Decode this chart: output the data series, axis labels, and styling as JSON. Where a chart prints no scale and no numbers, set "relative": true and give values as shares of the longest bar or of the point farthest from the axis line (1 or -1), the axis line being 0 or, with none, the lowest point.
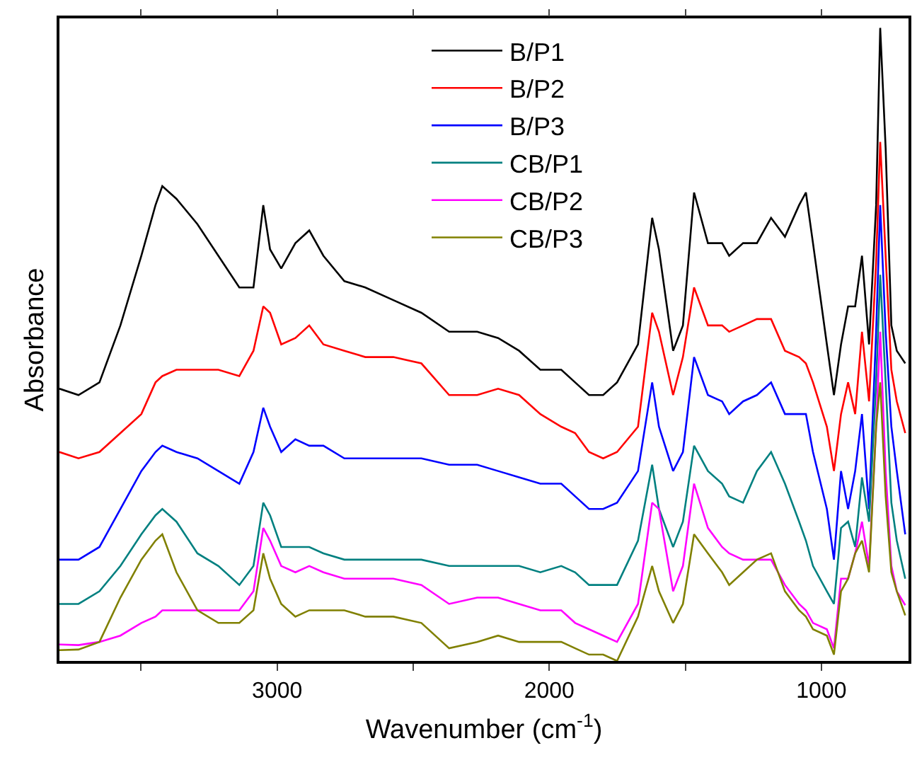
{
  "chart_data": {
    "type": "line",
    "xlabel": "Wavenumber (cm$^{-1}$)",
    "ylabel": "Absorbance",
    "relative": true,
    "legend": "top",
    "tick_labels": "x",
    "xlim": [
      3800,
      680
    ],
    "xticks": [
      {
        "value": 3500,
        "label": null
      },
      3000,
      {
        "value": 2500,
        "label": null
      },
      2000,
      {
        "value": 1500,
        "label": null
      },
      1000
    ],
    "x": [
      3800,
      3730,
      3653,
      3576,
      3499,
      3447,
      3422,
      3370,
      3293,
      3216,
      3139,
      3087,
      3051,
      3026,
      2985,
      2933,
      2882,
      2830,
      2753,
      2676,
      2573,
      2470,
      2368,
      2265,
      2188,
      2111,
      2033,
      1956,
      1905,
      1854,
      1802,
      1751,
      1674,
      1622,
      1597,
      1545,
      1509,
      1468,
      1417,
      1365,
      1339,
      1288,
      1237,
      1185,
      1134,
      1082,
      1057,
      1031,
      980,
      954,
      928,
      902,
      876,
      851,
      825,
      799,
      784,
      764,
      743,
      723,
      692
    ],
    "series": [
      {
        "name": "B/P1",
        "color": "#000000",
        "values": [
          0.43,
          0.42,
          0.44,
          0.53,
          0.64,
          0.72,
          0.75,
          0.73,
          0.69,
          0.64,
          0.59,
          0.59,
          0.72,
          0.65,
          0.62,
          0.66,
          0.68,
          0.64,
          0.6,
          0.59,
          0.57,
          0.55,
          0.52,
          0.52,
          0.51,
          0.49,
          0.46,
          0.46,
          0.44,
          0.42,
          0.42,
          0.44,
          0.5,
          0.7,
          0.65,
          0.49,
          0.53,
          0.74,
          0.66,
          0.66,
          0.64,
          0.66,
          0.66,
          0.7,
          0.67,
          0.72,
          0.74,
          0.66,
          0.5,
          0.42,
          0.5,
          0.56,
          0.56,
          0.64,
          0.5,
          0.72,
          1.0,
          0.81,
          0.53,
          0.49,
          0.47
        ]
      },
      {
        "name": "B/P2",
        "color": "#ff0000",
        "values": [
          0.33,
          0.32,
          0.33,
          0.36,
          0.39,
          0.44,
          0.45,
          0.46,
          0.46,
          0.46,
          0.45,
          0.49,
          0.56,
          0.55,
          0.5,
          0.51,
          0.53,
          0.5,
          0.49,
          0.48,
          0.48,
          0.47,
          0.42,
          0.42,
          0.43,
          0.42,
          0.39,
          0.37,
          0.36,
          0.33,
          0.32,
          0.33,
          0.37,
          0.55,
          0.52,
          0.42,
          0.48,
          0.59,
          0.53,
          0.53,
          0.52,
          0.53,
          0.54,
          0.54,
          0.49,
          0.48,
          0.47,
          0.44,
          0.37,
          0.3,
          0.39,
          0.44,
          0.39,
          0.52,
          0.41,
          0.63,
          0.82,
          0.64,
          0.46,
          0.41,
          0.36
        ]
      },
      {
        "name": "B/P3",
        "color": "#0000ff",
        "values": [
          0.16,
          0.16,
          0.18,
          0.24,
          0.3,
          0.33,
          0.34,
          0.33,
          0.32,
          0.3,
          0.28,
          0.33,
          0.4,
          0.37,
          0.33,
          0.35,
          0.34,
          0.34,
          0.32,
          0.32,
          0.32,
          0.32,
          0.31,
          0.31,
          0.3,
          0.29,
          0.28,
          0.28,
          0.26,
          0.24,
          0.24,
          0.25,
          0.3,
          0.44,
          0.37,
          0.3,
          0.33,
          0.48,
          0.42,
          0.41,
          0.39,
          0.41,
          0.42,
          0.44,
          0.39,
          0.39,
          0.39,
          0.33,
          0.24,
          0.16,
          0.3,
          0.24,
          0.3,
          0.39,
          0.24,
          0.52,
          0.72,
          0.52,
          0.37,
          0.3,
          0.2
        ]
      },
      {
        "name": "CB/P1",
        "color": "#008080",
        "values": [
          0.09,
          0.09,
          0.11,
          0.15,
          0.2,
          0.23,
          0.24,
          0.22,
          0.17,
          0.15,
          0.12,
          0.15,
          0.25,
          0.23,
          0.18,
          0.18,
          0.18,
          0.17,
          0.16,
          0.16,
          0.16,
          0.16,
          0.15,
          0.15,
          0.15,
          0.15,
          0.14,
          0.15,
          0.14,
          0.12,
          0.12,
          0.12,
          0.19,
          0.31,
          0.24,
          0.18,
          0.22,
          0.34,
          0.3,
          0.28,
          0.26,
          0.25,
          0.3,
          0.33,
          0.28,
          0.22,
          0.19,
          0.15,
          0.11,
          0.09,
          0.21,
          0.22,
          0.18,
          0.29,
          0.22,
          0.44,
          0.61,
          0.44,
          0.25,
          0.19,
          0.13
        ]
      },
      {
        "name": "CB/P2",
        "color": "#ff00ff",
        "values": [
          0.026,
          0.025,
          0.03,
          0.04,
          0.06,
          0.07,
          0.08,
          0.08,
          0.08,
          0.08,
          0.08,
          0.11,
          0.21,
          0.19,
          0.15,
          0.14,
          0.15,
          0.14,
          0.13,
          0.13,
          0.13,
          0.12,
          0.09,
          0.1,
          0.1,
          0.09,
          0.08,
          0.08,
          0.06,
          0.05,
          0.04,
          0.03,
          0.09,
          0.25,
          0.24,
          0.11,
          0.15,
          0.28,
          0.21,
          0.18,
          0.17,
          0.16,
          0.16,
          0.16,
          0.12,
          0.09,
          0.08,
          0.06,
          0.05,
          0.02,
          0.13,
          0.13,
          0.17,
          0.22,
          0.15,
          0.37,
          0.52,
          0.3,
          0.15,
          0.11,
          0.088
        ]
      },
      {
        "name": "CB/P3",
        "color": "#808000",
        "values": [
          0.017,
          0.018,
          0.03,
          0.1,
          0.16,
          0.19,
          0.2,
          0.14,
          0.08,
          0.06,
          0.06,
          0.08,
          0.17,
          0.13,
          0.09,
          0.07,
          0.08,
          0.08,
          0.08,
          0.07,
          0.07,
          0.06,
          0.02,
          0.03,
          0.04,
          0.03,
          0.03,
          0.03,
          0.02,
          0.01,
          0.01,
          0.0,
          0.07,
          0.15,
          0.11,
          0.06,
          0.09,
          0.2,
          0.17,
          0.14,
          0.12,
          0.14,
          0.16,
          0.17,
          0.11,
          0.08,
          0.07,
          0.05,
          0.04,
          0.01,
          0.11,
          0.13,
          0.17,
          0.19,
          0.14,
          0.37,
          0.44,
          0.26,
          0.14,
          0.11,
          0.072
        ]
      }
    ]
  }
}
